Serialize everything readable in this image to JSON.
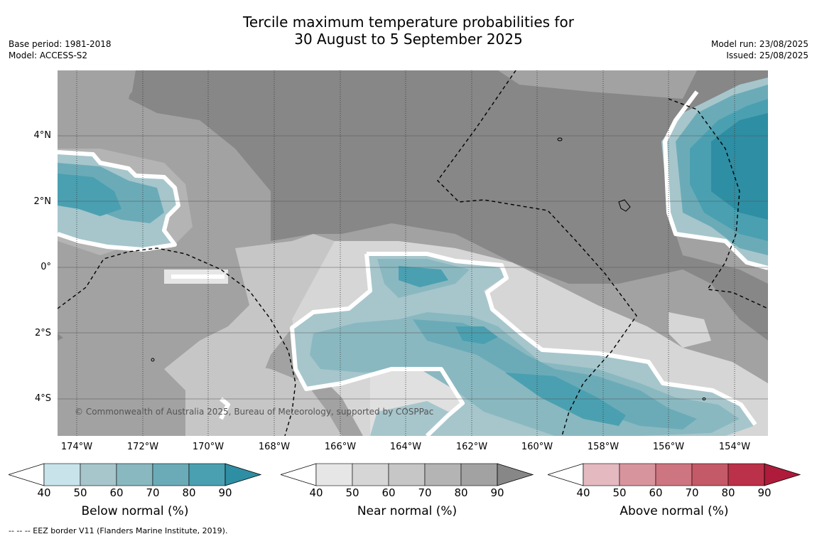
{
  "title_line1": "Tercile maximum temperature probabilities for",
  "title_line2": "30 August to 5 September 2025",
  "base_period": "Base period: 1981-2018",
  "model": "Model: ACCESS-S2",
  "model_run": "Model run: 23/08/2025",
  "issued": "Issued: 25/08/2025",
  "copyright": "© Commonwealth of Australia 2025, Bureau of Meteorology, supported by COSPPac",
  "lat_ticks": [
    "4°N",
    "2°N",
    "0°",
    "2°S",
    "4°S"
  ],
  "lon_ticks": [
    "174°W",
    "172°W",
    "170°W",
    "168°W",
    "166°W",
    "164°W",
    "162°W",
    "160°W",
    "158°W",
    "156°W",
    "154°W"
  ],
  "colorbars": [
    {
      "title": "Below normal (%)",
      "labels": [
        "40",
        "50",
        "60",
        "70",
        "80",
        "90"
      ],
      "colors": [
        "#c9e3ea",
        "#a6c6cc",
        "#8ab8c0",
        "#6babb8",
        "#4aa0b0",
        "#2e8ea3"
      ]
    },
    {
      "title": "Near normal (%)",
      "labels": [
        "40",
        "50",
        "60",
        "70",
        "80",
        "90"
      ],
      "colors": [
        "#e6e6e6",
        "#d6d6d6",
        "#c6c6c6",
        "#b4b4b4",
        "#a2a2a2",
        "#878787"
      ]
    },
    {
      "title": "Above normal (%)",
      "labels": [
        "40",
        "50",
        "60",
        "70",
        "80",
        "90"
      ],
      "colors": [
        "#e4b9c0",
        "#d8949d",
        "#cd7580",
        "#c45a67",
        "#bb3149",
        "#af1b3a"
      ]
    }
  ],
  "footer": "-- -- -- EEZ border V11 (Flanders Marine Institute, 2019)."
}
